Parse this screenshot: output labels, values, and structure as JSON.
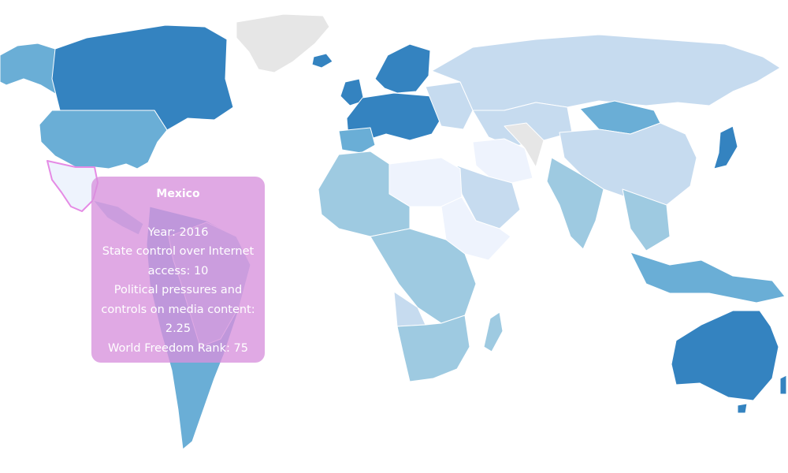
{
  "map": {
    "colors": {
      "highest": "#3483c0",
      "high": "#6aaed6",
      "mid": "#9ecae1",
      "low": "#c6dbef",
      "lowest": "#eef3fd",
      "no_data": "#e6e6e6",
      "highlight_border": "#e58be5"
    },
    "highlighted_country": "Mexico"
  },
  "tooltip": {
    "country": "Mexico",
    "year_line": "Year: 2016",
    "state_control_line": "State control over Internet access: 10",
    "political_line": "Political pressures and controls on media content: 2.25",
    "rank_line": "World Freedom Rank: 75"
  }
}
